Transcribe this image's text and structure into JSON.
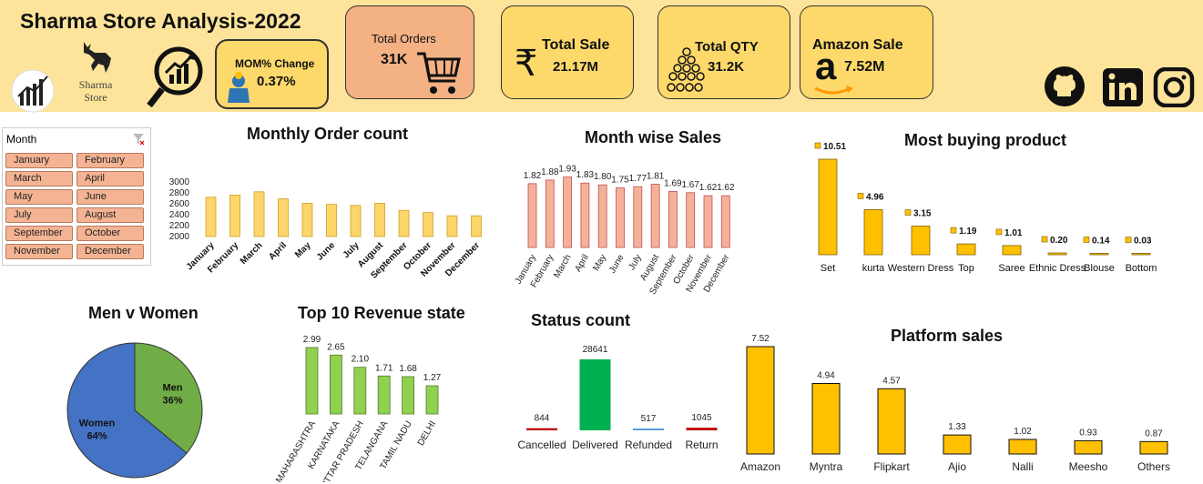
{
  "header": {
    "title": "Sharma Store Analysis-2022",
    "logo_text": [
      "Sharma",
      "Store"
    ],
    "kpis": {
      "mom": {
        "label": "MOM% Change",
        "value": "0.37%"
      },
      "orders": {
        "label": "Total Orders",
        "value": "31K"
      },
      "sale": {
        "label": "Total Sale",
        "value": "21.17M"
      },
      "qty": {
        "label": "Total QTY",
        "value": "31.2K"
      },
      "amazon": {
        "label": "Amazon Sale",
        "value": "7.52M"
      }
    },
    "social_icons": [
      "github-icon",
      "linkedin-icon",
      "instagram-icon"
    ]
  },
  "slicer": {
    "title": "Month",
    "items": [
      "January",
      "February",
      "March",
      "April",
      "May",
      "June",
      "July",
      "August",
      "September",
      "October",
      "November",
      "December"
    ]
  },
  "chart_data": [
    {
      "id": "monthly-order-count",
      "type": "bar",
      "title": "Monthly Order count",
      "categories": [
        "January",
        "February",
        "March",
        "April",
        "May",
        "June",
        "July",
        "August",
        "September",
        "October",
        "November",
        "December"
      ],
      "values": [
        2720,
        2760,
        2820,
        2690,
        2610,
        2590,
        2570,
        2610,
        2480,
        2440,
        2380,
        2380
      ],
      "yticks": [
        "3000",
        "2800",
        "2600",
        "2400",
        "2200",
        "2000"
      ],
      "ylim": [
        2000,
        3000
      ],
      "color": "#fdd56a"
    },
    {
      "id": "month-wise-sales",
      "type": "bar",
      "title": "Month wise Sales",
      "categories": [
        "January",
        "February",
        "March",
        "April",
        "May",
        "June",
        "July",
        "August",
        "September",
        "October",
        "November",
        "December"
      ],
      "values": [
        1.82,
        1.88,
        1.93,
        1.83,
        1.8,
        1.75,
        1.77,
        1.81,
        1.69,
        1.67,
        1.62,
        1.62
      ],
      "labels": [
        "1.82",
        "1.88",
        "1.93",
        "1.83",
        "1.80",
        "1.75",
        "1.77",
        "1.81",
        "1.69",
        "1.67",
        "1.62",
        "1.62"
      ],
      "color": "#f4b19a"
    },
    {
      "id": "most-buying-product",
      "type": "bar",
      "title": "Most buying product",
      "categories": [
        "Set",
        "kurta",
        "Western Dress",
        "Top",
        "Saree",
        "Ethnic Dress",
        "Blouse",
        "Bottom"
      ],
      "values": [
        10.51,
        4.96,
        3.15,
        1.19,
        1.01,
        0.2,
        0.14,
        0.03
      ],
      "labels": [
        "10.51",
        "4.96",
        "3.15",
        "1.19",
        "1.01",
        "0.20",
        "0.14",
        "0.03"
      ],
      "color": "#ffc000"
    },
    {
      "id": "men-v-women",
      "type": "pie",
      "title": "Men v Women",
      "categories": [
        "Men",
        "Women"
      ],
      "values": [
        36,
        64
      ],
      "labels": [
        "36%",
        "64%"
      ],
      "colors": [
        "#70ad47",
        "#4472c4"
      ]
    },
    {
      "id": "top-10-revenue-state",
      "type": "bar",
      "title": "Top 10 Revenue state",
      "categories": [
        "MAHARASHTRA",
        "KARNATAKA",
        "UTTAR PRADESH",
        "TELANGANA",
        "TAMIL NADU",
        "DELHI"
      ],
      "values": [
        2.99,
        2.65,
        2.1,
        1.71,
        1.68,
        1.27
      ],
      "labels": [
        "2.99",
        "2.65",
        "2.10",
        "1.71",
        "1.68",
        "1.27"
      ],
      "color": "#92d050"
    },
    {
      "id": "status-count",
      "type": "bar",
      "title": "Status count",
      "categories": [
        "Cancelled",
        "Delivered",
        "Refunded",
        "Return"
      ],
      "values": [
        844,
        28641,
        517,
        1045
      ],
      "labels": [
        "844",
        "28641",
        "517",
        "1045"
      ],
      "colors": [
        "#c00000",
        "#00b050",
        "#5b9bd5",
        "#c00000"
      ]
    },
    {
      "id": "platform-sales",
      "type": "bar",
      "title": "Platform sales",
      "categories": [
        "Amazon",
        "Myntra",
        "Flipkart",
        "Ajio",
        "Nalli",
        "Meesho",
        "Others"
      ],
      "values": [
        7.52,
        4.94,
        4.57,
        1.33,
        1.02,
        0.93,
        0.87
      ],
      "labels": [
        "7.52",
        "4.94",
        "4.57",
        "1.33",
        "1.02",
        "0.93",
        "0.87"
      ],
      "color": "#ffc000"
    }
  ]
}
